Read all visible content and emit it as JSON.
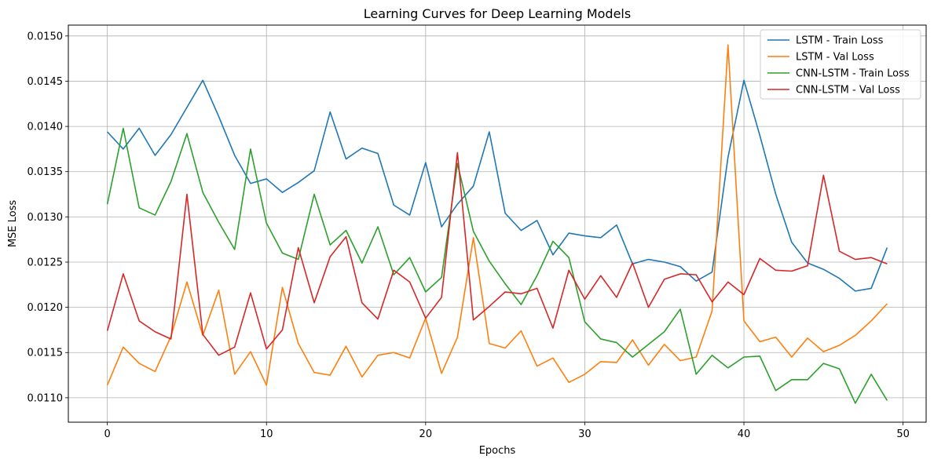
{
  "chart_data": {
    "type": "line",
    "title": "Learning Curves for Deep Learning Models",
    "xlabel": "Epochs",
    "ylabel": "MSE Loss",
    "xlim": [
      -2.45,
      51.45
    ],
    "ylim": [
      0.01073,
      0.01512
    ],
    "xticks": [
      0,
      10,
      20,
      30,
      40,
      50
    ],
    "yticks": [
      0.011,
      0.0115,
      0.012,
      0.0125,
      0.013,
      0.0135,
      0.014,
      0.0145,
      0.015
    ],
    "ytick_labels": [
      "0.0110",
      "0.0115",
      "0.0120",
      "0.0125",
      "0.0130",
      "0.0135",
      "0.0140",
      "0.0145",
      "0.0150"
    ],
    "grid": true,
    "legend_position": "top-right",
    "x": [
      0,
      1,
      2,
      3,
      4,
      5,
      6,
      7,
      8,
      9,
      10,
      11,
      12,
      13,
      14,
      15,
      16,
      17,
      18,
      19,
      20,
      21,
      22,
      23,
      24,
      25,
      26,
      27,
      28,
      29,
      30,
      31,
      32,
      33,
      34,
      35,
      36,
      37,
      38,
      39,
      40,
      41,
      42,
      43,
      44,
      45,
      46,
      47,
      48,
      49
    ],
    "series": [
      {
        "name": "LSTM - Train Loss",
        "color": "#1f77b4",
        "values": [
          0.01394,
          0.01375,
          0.01398,
          0.01368,
          0.01391,
          0.01421,
          0.01451,
          0.01411,
          0.01368,
          0.01337,
          0.01342,
          0.01327,
          0.01338,
          0.01351,
          0.01416,
          0.01364,
          0.01376,
          0.0137,
          0.01313,
          0.01302,
          0.0136,
          0.01289,
          0.01314,
          0.01334,
          0.01394,
          0.01304,
          0.01285,
          0.01296,
          0.01258,
          0.01282,
          0.01279,
          0.01277,
          0.01291,
          0.01248,
          0.01253,
          0.0125,
          0.01245,
          0.01229,
          0.01239,
          0.01366,
          0.01451,
          0.0139,
          0.01325,
          0.01272,
          0.01249,
          0.01242,
          0.01232,
          0.01218,
          0.01221,
          0.01266
        ]
      },
      {
        "name": "LSTM - Val Loss",
        "color": "#ff7f0e",
        "values": [
          0.01114,
          0.01156,
          0.01138,
          0.01129,
          0.01168,
          0.01228,
          0.01169,
          0.01219,
          0.01126,
          0.01151,
          0.01114,
          0.01222,
          0.0116,
          0.01128,
          0.01125,
          0.01157,
          0.01123,
          0.01147,
          0.0115,
          0.01144,
          0.01188,
          0.01127,
          0.01167,
          0.01277,
          0.0116,
          0.01155,
          0.01174,
          0.01135,
          0.01144,
          0.01117,
          0.01126,
          0.0114,
          0.01139,
          0.01164,
          0.01136,
          0.01159,
          0.01141,
          0.01145,
          0.01196,
          0.0149,
          0.01185,
          0.01162,
          0.01167,
          0.01145,
          0.01166,
          0.01151,
          0.01158,
          0.01169,
          0.01185,
          0.01204
        ]
      },
      {
        "name": "CNN-LSTM - Train Loss",
        "color": "#2ca02c",
        "values": [
          0.01314,
          0.01398,
          0.0131,
          0.01302,
          0.01339,
          0.01392,
          0.01327,
          0.01294,
          0.01264,
          0.01375,
          0.01293,
          0.0126,
          0.01253,
          0.01325,
          0.01269,
          0.01285,
          0.01249,
          0.01289,
          0.01236,
          0.01255,
          0.01217,
          0.01233,
          0.01359,
          0.01284,
          0.01251,
          0.01226,
          0.01203,
          0.01235,
          0.01273,
          0.01255,
          0.01184,
          0.01165,
          0.01161,
          0.01145,
          0.01159,
          0.01173,
          0.01198,
          0.01126,
          0.01147,
          0.01133,
          0.01145,
          0.01146,
          0.01108,
          0.0112,
          0.0112,
          0.01138,
          0.01132,
          0.01094,
          0.01126,
          0.01097
        ]
      },
      {
        "name": "CNN-LSTM - Val Loss",
        "color": "#d62728",
        "values": [
          0.01174,
          0.01237,
          0.01185,
          0.01173,
          0.01165,
          0.01325,
          0.0117,
          0.01147,
          0.01156,
          0.01216,
          0.01154,
          0.01175,
          0.01266,
          0.01205,
          0.01256,
          0.01278,
          0.01205,
          0.01187,
          0.01241,
          0.01228,
          0.01188,
          0.01211,
          0.01371,
          0.01186,
          0.01201,
          0.01217,
          0.01215,
          0.01221,
          0.01177,
          0.01241,
          0.01209,
          0.01235,
          0.01211,
          0.01249,
          0.012,
          0.01231,
          0.01237,
          0.01236,
          0.01206,
          0.01228,
          0.01214,
          0.01254,
          0.01241,
          0.0124,
          0.01246,
          0.01346,
          0.01262,
          0.01253,
          0.01255,
          0.01248
        ]
      }
    ]
  }
}
